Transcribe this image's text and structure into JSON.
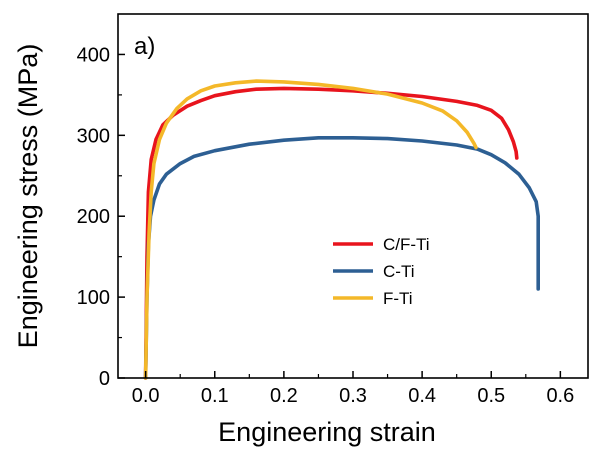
{
  "chart_data": {
    "type": "line",
    "panel_label": "a)",
    "xlabel": "Engineering strain",
    "ylabel": "Engineering stress (MPa)",
    "xlim": [
      -0.04,
      0.64
    ],
    "ylim": [
      0,
      450
    ],
    "x_ticks": [
      0.0,
      0.1,
      0.2,
      0.3,
      0.4,
      0.5,
      0.6
    ],
    "x_tick_labels": [
      "0.0",
      "0.1",
      "0.2",
      "0.3",
      "0.4",
      "0.5",
      "0.6"
    ],
    "y_ticks": [
      0,
      100,
      200,
      300,
      400
    ],
    "y_tick_labels": [
      "0",
      "100",
      "200",
      "300",
      "400"
    ],
    "legend_position": "center-right",
    "series": [
      {
        "name": "C/F-Ti",
        "color": "#e8141d",
        "points": [
          [
            0.0,
            0
          ],
          [
            0.002,
            150
          ],
          [
            0.004,
            230
          ],
          [
            0.008,
            270
          ],
          [
            0.015,
            295
          ],
          [
            0.025,
            313
          ],
          [
            0.04,
            325
          ],
          [
            0.06,
            336
          ],
          [
            0.08,
            343
          ],
          [
            0.1,
            349
          ],
          [
            0.13,
            354
          ],
          [
            0.16,
            357
          ],
          [
            0.2,
            358
          ],
          [
            0.25,
            357
          ],
          [
            0.3,
            355
          ],
          [
            0.35,
            352
          ],
          [
            0.4,
            348
          ],
          [
            0.45,
            342
          ],
          [
            0.48,
            337
          ],
          [
            0.5,
            331
          ],
          [
            0.515,
            321
          ],
          [
            0.525,
            307
          ],
          [
            0.532,
            292
          ],
          [
            0.536,
            280
          ],
          [
            0.537,
            272
          ]
        ]
      },
      {
        "name": "C-Ti",
        "color": "#2d5f93",
        "points": [
          [
            0.0,
            0
          ],
          [
            0.002,
            100
          ],
          [
            0.004,
            165
          ],
          [
            0.007,
            200
          ],
          [
            0.012,
            220
          ],
          [
            0.02,
            240
          ],
          [
            0.03,
            252
          ],
          [
            0.05,
            265
          ],
          [
            0.07,
            274
          ],
          [
            0.1,
            281
          ],
          [
            0.15,
            289
          ],
          [
            0.2,
            294
          ],
          [
            0.25,
            297
          ],
          [
            0.3,
            297
          ],
          [
            0.35,
            296
          ],
          [
            0.4,
            293
          ],
          [
            0.45,
            288
          ],
          [
            0.48,
            283
          ],
          [
            0.5,
            276
          ],
          [
            0.52,
            266
          ],
          [
            0.54,
            252
          ],
          [
            0.555,
            235
          ],
          [
            0.565,
            218
          ],
          [
            0.568,
            200
          ],
          [
            0.568,
            150
          ],
          [
            0.568,
            110
          ]
        ]
      },
      {
        "name": "F-Ti",
        "color": "#f4b829",
        "points": [
          [
            0.0,
            0
          ],
          [
            0.002,
            100
          ],
          [
            0.005,
            180
          ],
          [
            0.008,
            230
          ],
          [
            0.012,
            265
          ],
          [
            0.02,
            295
          ],
          [
            0.03,
            315
          ],
          [
            0.045,
            333
          ],
          [
            0.06,
            345
          ],
          [
            0.08,
            355
          ],
          [
            0.1,
            361
          ],
          [
            0.13,
            365
          ],
          [
            0.16,
            367
          ],
          [
            0.2,
            366
          ],
          [
            0.25,
            363
          ],
          [
            0.3,
            358
          ],
          [
            0.35,
            351
          ],
          [
            0.4,
            340
          ],
          [
            0.43,
            330
          ],
          [
            0.45,
            318
          ],
          [
            0.465,
            304
          ],
          [
            0.475,
            290
          ],
          [
            0.478,
            285
          ]
        ]
      }
    ]
  }
}
